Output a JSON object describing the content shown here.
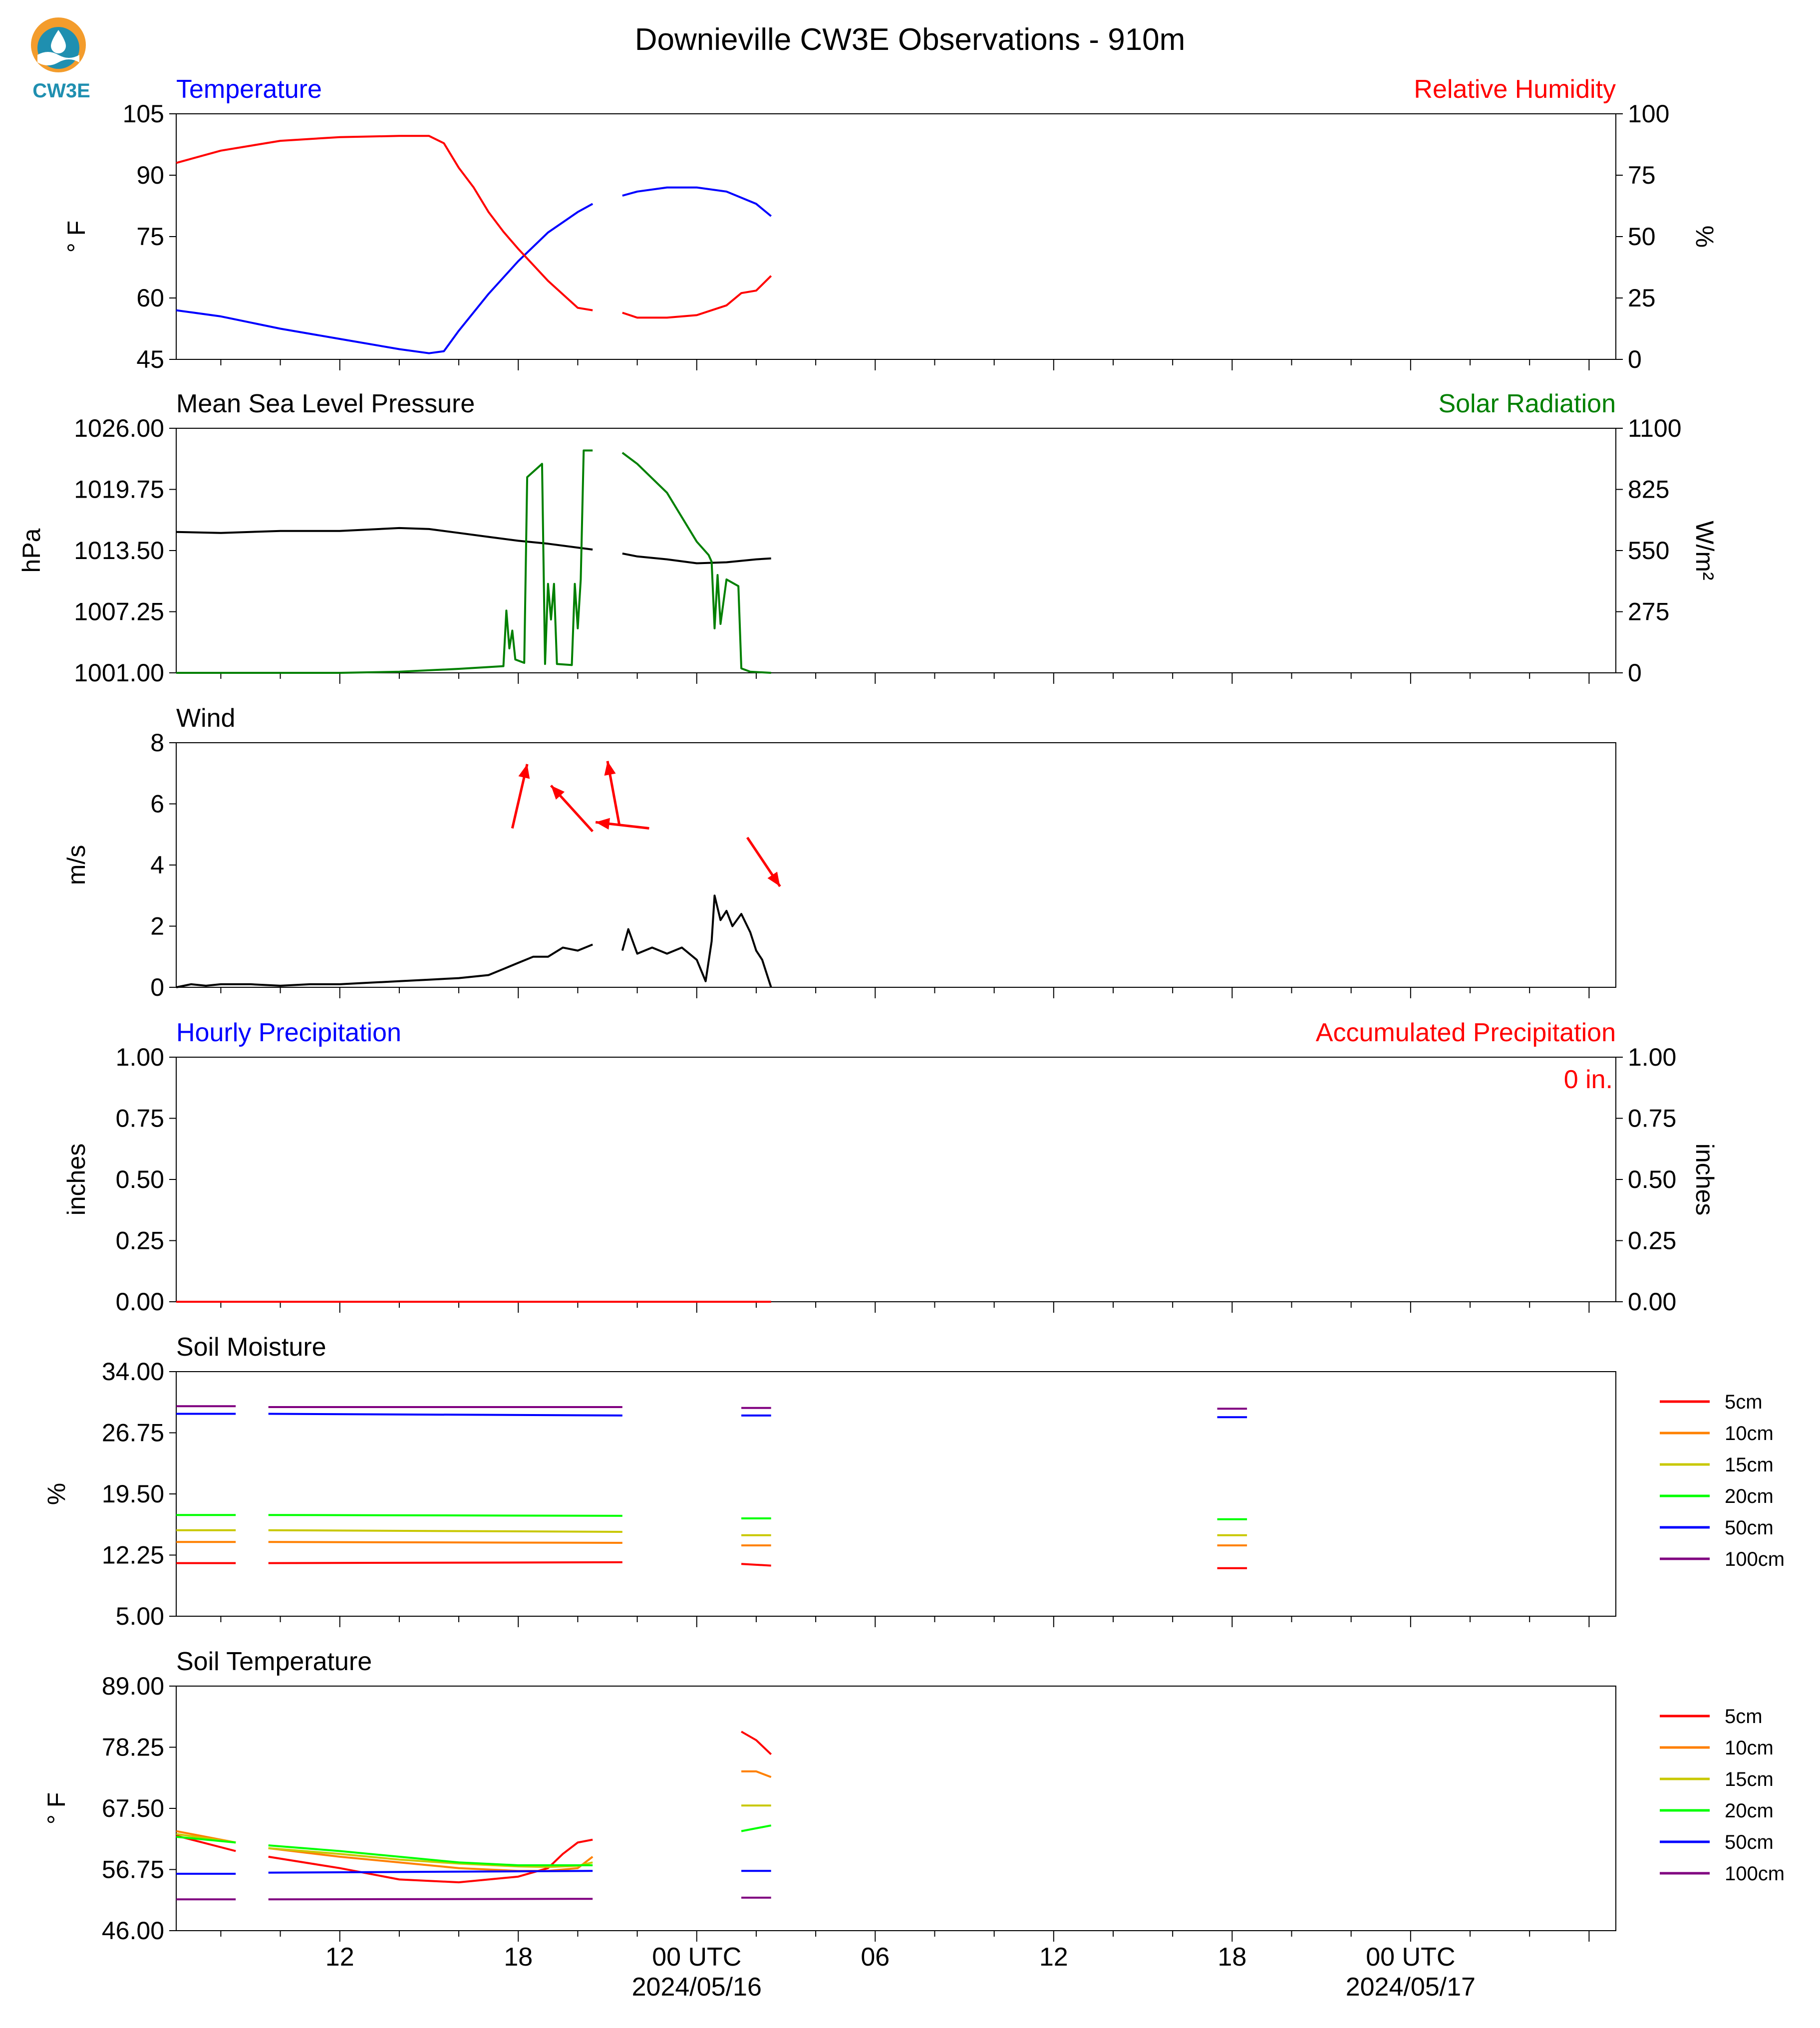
{
  "title": "Downieville CW3E Observations - 910m",
  "logo": {
    "text": "CW3E",
    "colors": {
      "sun": "#f39c2c",
      "wave": "#1f8fb0",
      "drop": "#ffffff"
    }
  },
  "x_axis": {
    "range_hours": [
      6.5,
      54.9
    ],
    "major_ticks": [
      {
        "hour": 12,
        "label": "12"
      },
      {
        "hour": 18,
        "label": "18"
      },
      {
        "hour": 24,
        "label": "00 UTC",
        "date": "2024/05/16"
      },
      {
        "hour": 30,
        "label": "06"
      },
      {
        "hour": 36,
        "label": "12"
      },
      {
        "hour": 42,
        "label": "18"
      },
      {
        "hour": 48,
        "label": "00 UTC",
        "date": "2024/05/17"
      }
    ],
    "note_hours": "hours after 2024/05/15 00 UTC"
  },
  "colors": {
    "temp": "#0000ff",
    "rh": "#ff0000",
    "pressure": "#000000",
    "solar": "#008000",
    "wind": "#000000",
    "wind_arrow": "#ff0000",
    "precip_left": "#0000ff",
    "precip_right": "#ff0000",
    "depth_5cm": "#ff0000",
    "depth_10cm": "#ff8000",
    "depth_15cm": "#c8c800",
    "depth_20cm": "#00ff00",
    "depth_50cm": "#0000ff",
    "depth_100cm": "#800080"
  },
  "chart_data": [
    {
      "type": "line",
      "id": "temp_rh",
      "left_title": "Temperature",
      "right_title": "Relative Humidity",
      "ylabel": "° F",
      "ylabel_right": "%",
      "ylim": [
        45,
        105
      ],
      "ylim_right": [
        0,
        100
      ],
      "yticks": [
        "45",
        "60",
        "75",
        "90",
        "105"
      ],
      "yticks_right": [
        "0",
        "25",
        "50",
        "75",
        "100"
      ],
      "series": [
        {
          "axis": "left",
          "color": "temp",
          "x": [
            6.5,
            8,
            10,
            12,
            14,
            15,
            15.5,
            16,
            17,
            18,
            19,
            20,
            20.5,
            null,
            21.5,
            22,
            23,
            24,
            25,
            26,
            26.5
          ],
          "y": [
            57,
            55.5,
            52.5,
            50,
            47.5,
            46.5,
            47,
            52,
            61,
            69,
            76,
            81,
            83,
            null,
            85,
            86,
            87,
            87,
            86,
            83,
            80
          ]
        },
        {
          "axis": "right",
          "color": "rh",
          "x": [
            6.5,
            8,
            10,
            12,
            14,
            15,
            15.5,
            16,
            16.5,
            17,
            17.5,
            18,
            19,
            20,
            20.5,
            null,
            21.5,
            22,
            23,
            24,
            25,
            25.5,
            26,
            26.5
          ],
          "y": [
            80,
            85,
            89,
            90.5,
            91,
            91,
            88,
            78,
            70,
            60,
            52,
            45,
            32,
            21,
            20,
            null,
            19,
            17,
            17,
            18,
            22,
            27,
            28,
            34
          ]
        }
      ]
    },
    {
      "type": "line",
      "id": "mslp_solar",
      "left_title": "Mean Sea Level Pressure",
      "right_title": "Solar Radiation",
      "ylabel": "hPa",
      "ylabel_right": "W/m²",
      "ylim": [
        1001,
        1026
      ],
      "ylim_right": [
        0,
        1100
      ],
      "yticks": [
        "1001.00",
        "1007.25",
        "1013.50",
        "1019.75",
        "1026.00"
      ],
      "yticks_right": [
        "0",
        "275",
        "550",
        "825",
        "1100"
      ],
      "series": [
        {
          "axis": "left",
          "color": "pressure",
          "x": [
            6.5,
            8,
            10,
            12,
            14,
            15,
            16,
            17,
            18,
            19,
            20,
            20.5,
            null,
            21.5,
            22,
            23,
            24,
            25,
            26,
            26.5
          ],
          "y": [
            1015.4,
            1015.3,
            1015.5,
            1015.5,
            1015.8,
            1015.7,
            1015.3,
            1014.9,
            1014.5,
            1014.2,
            1013.8,
            1013.6,
            null,
            1013.2,
            1012.9,
            1012.6,
            1012.2,
            1012.3,
            1012.6,
            1012.7
          ]
        },
        {
          "axis": "right",
          "color": "solar",
          "x": [
            6.5,
            12,
            14,
            16,
            17.5,
            17.6,
            17.7,
            17.8,
            17.9,
            18.2,
            18.3,
            18.8,
            18.9,
            19.0,
            19.1,
            19.2,
            19.3,
            19.8,
            19.9,
            20.0,
            20.1,
            20.2,
            20.3,
            20.4,
            20.5,
            null,
            21.5,
            22,
            23,
            24,
            24.4,
            24.5,
            24.6,
            24.7,
            24.8,
            25.0,
            25.4,
            25.5,
            25.8,
            26.5
          ],
          "y": [
            0,
            0,
            5,
            18,
            30,
            280,
            110,
            190,
            60,
            45,
            880,
            940,
            40,
            400,
            240,
            400,
            40,
            35,
            400,
            200,
            420,
            1000,
            1000,
            1000,
            1000,
            null,
            990,
            940,
            810,
            590,
            530,
            500,
            200,
            440,
            220,
            420,
            390,
            20,
            5,
            0
          ]
        }
      ]
    },
    {
      "type": "line",
      "id": "wind",
      "left_title": "Wind",
      "ylabel": "m/s",
      "ylim": [
        0,
        8
      ],
      "yticks": [
        "0",
        "2",
        "4",
        "6",
        "8"
      ],
      "series": [
        {
          "axis": "left",
          "color": "wind",
          "x": [
            6.5,
            7,
            7.5,
            8,
            9,
            10,
            11,
            12,
            13,
            14,
            15,
            16,
            17,
            17.5,
            18,
            18.5,
            19,
            19.5,
            20,
            20.5,
            null,
            21.5,
            21.7,
            22,
            22.5,
            23,
            23.5,
            24,
            24.3,
            24.5,
            24.6,
            24.8,
            25,
            25.2,
            25.5,
            25.8,
            26,
            26.2,
            26.5
          ],
          "y": [
            0,
            0.1,
            0.05,
            0.1,
            0.1,
            0.05,
            0.1,
            0.1,
            0.15,
            0.2,
            0.25,
            0.3,
            0.4,
            0.6,
            0.8,
            1.0,
            1.0,
            1.3,
            1.2,
            1.4,
            null,
            1.2,
            1.9,
            1.1,
            1.3,
            1.1,
            1.3,
            0.9,
            0.2,
            1.5,
            3.0,
            2.2,
            2.5,
            2.0,
            2.4,
            1.8,
            1.2,
            0.9,
            0.0
          ]
        }
      ],
      "arrows": [
        {
          "x0": 17.8,
          "y0": 5.2,
          "x1": 18.3,
          "y1": 7.3
        },
        {
          "x0": 20.5,
          "y0": 5.1,
          "x1": 19.1,
          "y1": 6.6
        },
        {
          "x0": 22.4,
          "y0": 5.2,
          "x1": 20.6,
          "y1": 5.4
        },
        {
          "x0": 21.4,
          "y0": 5.3,
          "x1": 21.0,
          "y1": 7.4
        },
        {
          "x0": 25.7,
          "y0": 4.9,
          "x1": 26.8,
          "y1": 3.3
        }
      ]
    },
    {
      "type": "line",
      "id": "precip",
      "left_title": "Hourly Precipitation",
      "right_title": "Accumulated Precipitation",
      "ylabel": "inches",
      "ylabel_right": "inches",
      "ylim": [
        0,
        1
      ],
      "ylim_right": [
        0,
        1
      ],
      "yticks": [
        "0.00",
        "0.25",
        "0.50",
        "0.75",
        "1.00"
      ],
      "yticks_right": [
        "0.00",
        "0.25",
        "0.50",
        "0.75",
        "1.00"
      ],
      "annotation": "0 in.",
      "series": [
        {
          "axis": "left",
          "color": "precip_right",
          "x": [
            6.5,
            26.5
          ],
          "y": [
            0,
            0
          ]
        }
      ]
    },
    {
      "type": "line",
      "id": "soil_moisture",
      "left_title": "Soil Moisture",
      "ylabel": "%",
      "ylim": [
        5,
        34
      ],
      "yticks": [
        "5.00",
        "12.25",
        "19.50",
        "26.75",
        "34.00"
      ],
      "legend": [
        "5cm",
        "10cm",
        "15cm",
        "20cm",
        "50cm",
        "100cm"
      ],
      "series": [
        {
          "name": "5cm",
          "color": "depth_5cm",
          "x": [
            6.5,
            8.5,
            null,
            9.6,
            21.5,
            null,
            25.5,
            26.5,
            null,
            41.5,
            42.5
          ],
          "y": [
            11.3,
            11.3,
            null,
            11.3,
            11.4,
            null,
            11.2,
            11.0,
            null,
            10.7,
            10.7
          ]
        },
        {
          "name": "10cm",
          "color": "depth_10cm",
          "x": [
            6.5,
            8.5,
            null,
            9.6,
            21.5,
            null,
            25.5,
            26.5,
            null,
            41.5,
            42.5
          ],
          "y": [
            13.8,
            13.8,
            null,
            13.8,
            13.7,
            null,
            13.4,
            13.4,
            null,
            13.4,
            13.4
          ]
        },
        {
          "name": "15cm",
          "color": "depth_15cm",
          "x": [
            6.5,
            8.5,
            null,
            9.6,
            21.5,
            null,
            25.5,
            26.5,
            null,
            41.5,
            42.5
          ],
          "y": [
            15.2,
            15.2,
            null,
            15.2,
            15.0,
            null,
            14.6,
            14.6,
            null,
            14.6,
            14.6
          ]
        },
        {
          "name": "20cm",
          "color": "depth_20cm",
          "x": [
            6.5,
            8.5,
            null,
            9.6,
            21.5,
            null,
            25.5,
            26.5,
            null,
            41.5,
            42.5
          ],
          "y": [
            17.0,
            17.0,
            null,
            17.0,
            16.9,
            null,
            16.6,
            16.6,
            null,
            16.5,
            16.5
          ]
        },
        {
          "name": "50cm",
          "color": "depth_50cm",
          "x": [
            6.5,
            8.5,
            null,
            9.6,
            21.5,
            null,
            25.5,
            26.5,
            null,
            41.5,
            42.5
          ],
          "y": [
            29.0,
            29.0,
            null,
            29.0,
            28.8,
            null,
            28.8,
            28.8,
            null,
            28.6,
            28.6
          ]
        },
        {
          "name": "100cm",
          "color": "depth_100cm",
          "x": [
            6.5,
            8.5,
            null,
            9.6,
            21.5,
            null,
            25.5,
            26.5,
            null,
            41.5,
            42.5
          ],
          "y": [
            29.9,
            29.9,
            null,
            29.8,
            29.8,
            null,
            29.7,
            29.7,
            null,
            29.6,
            29.6
          ]
        }
      ]
    },
    {
      "type": "line",
      "id": "soil_temp",
      "left_title": "Soil Temperature",
      "ylabel": "° F",
      "ylim": [
        46,
        89
      ],
      "yticks": [
        "46.00",
        "56.75",
        "67.50",
        "78.25",
        "89.00"
      ],
      "legend": [
        "5cm",
        "10cm",
        "15cm",
        "20cm",
        "50cm",
        "100cm"
      ],
      "series": [
        {
          "name": "5cm",
          "color": "depth_5cm",
          "x": [
            6.5,
            8.5,
            null,
            9.6,
            12,
            14,
            16,
            18,
            19,
            19.5,
            20,
            20.5,
            null,
            25.5,
            26,
            26.5
          ],
          "y": [
            62.7,
            60.0,
            null,
            59.0,
            57.0,
            55.0,
            54.5,
            55.5,
            57.0,
            59.5,
            61.5,
            62.0,
            null,
            81.0,
            79.5,
            77.0
          ]
        },
        {
          "name": "10cm",
          "color": "depth_10cm",
          "x": [
            6.5,
            8.5,
            null,
            9.6,
            12,
            14,
            16,
            18,
            19,
            20,
            20.5,
            null,
            25.5,
            26,
            26.5
          ],
          "y": [
            63.5,
            61.5,
            null,
            60.5,
            59.0,
            58.0,
            57.0,
            56.5,
            56.5,
            57.0,
            59.0,
            null,
            74.0,
            74.0,
            73.0
          ]
        },
        {
          "name": "15cm",
          "color": "depth_15cm",
          "x": [
            6.5,
            8.5,
            null,
            9.6,
            12,
            14,
            16,
            18,
            19,
            20,
            20.5,
            null,
            25.5,
            26.5
          ],
          "y": [
            63.0,
            61.5,
            null,
            60.5,
            59.5,
            58.5,
            57.8,
            57.3,
            57.2,
            57.4,
            58.0,
            null,
            68.0,
            68.0
          ]
        },
        {
          "name": "20cm",
          "color": "depth_20cm",
          "x": [
            6.5,
            8.5,
            null,
            9.6,
            12,
            14,
            16,
            18,
            20,
            20.5,
            null,
            25.5,
            26.5
          ],
          "y": [
            62.5,
            61.5,
            null,
            61.0,
            60.0,
            59.0,
            58.0,
            57.5,
            57.5,
            57.5,
            null,
            63.5,
            64.5
          ]
        },
        {
          "name": "50cm",
          "color": "depth_50cm",
          "x": [
            6.5,
            8.5,
            null,
            9.6,
            20.5,
            null,
            25.5,
            26.5
          ],
          "y": [
            56.0,
            56.0,
            null,
            56.2,
            56.5,
            null,
            56.5,
            56.5
          ]
        },
        {
          "name": "100cm",
          "color": "depth_100cm",
          "x": [
            6.5,
            8.5,
            null,
            9.6,
            20.5,
            null,
            25.5,
            26.5
          ],
          "y": [
            51.5,
            51.5,
            null,
            51.5,
            51.6,
            null,
            51.8,
            51.8
          ]
        }
      ]
    }
  ]
}
